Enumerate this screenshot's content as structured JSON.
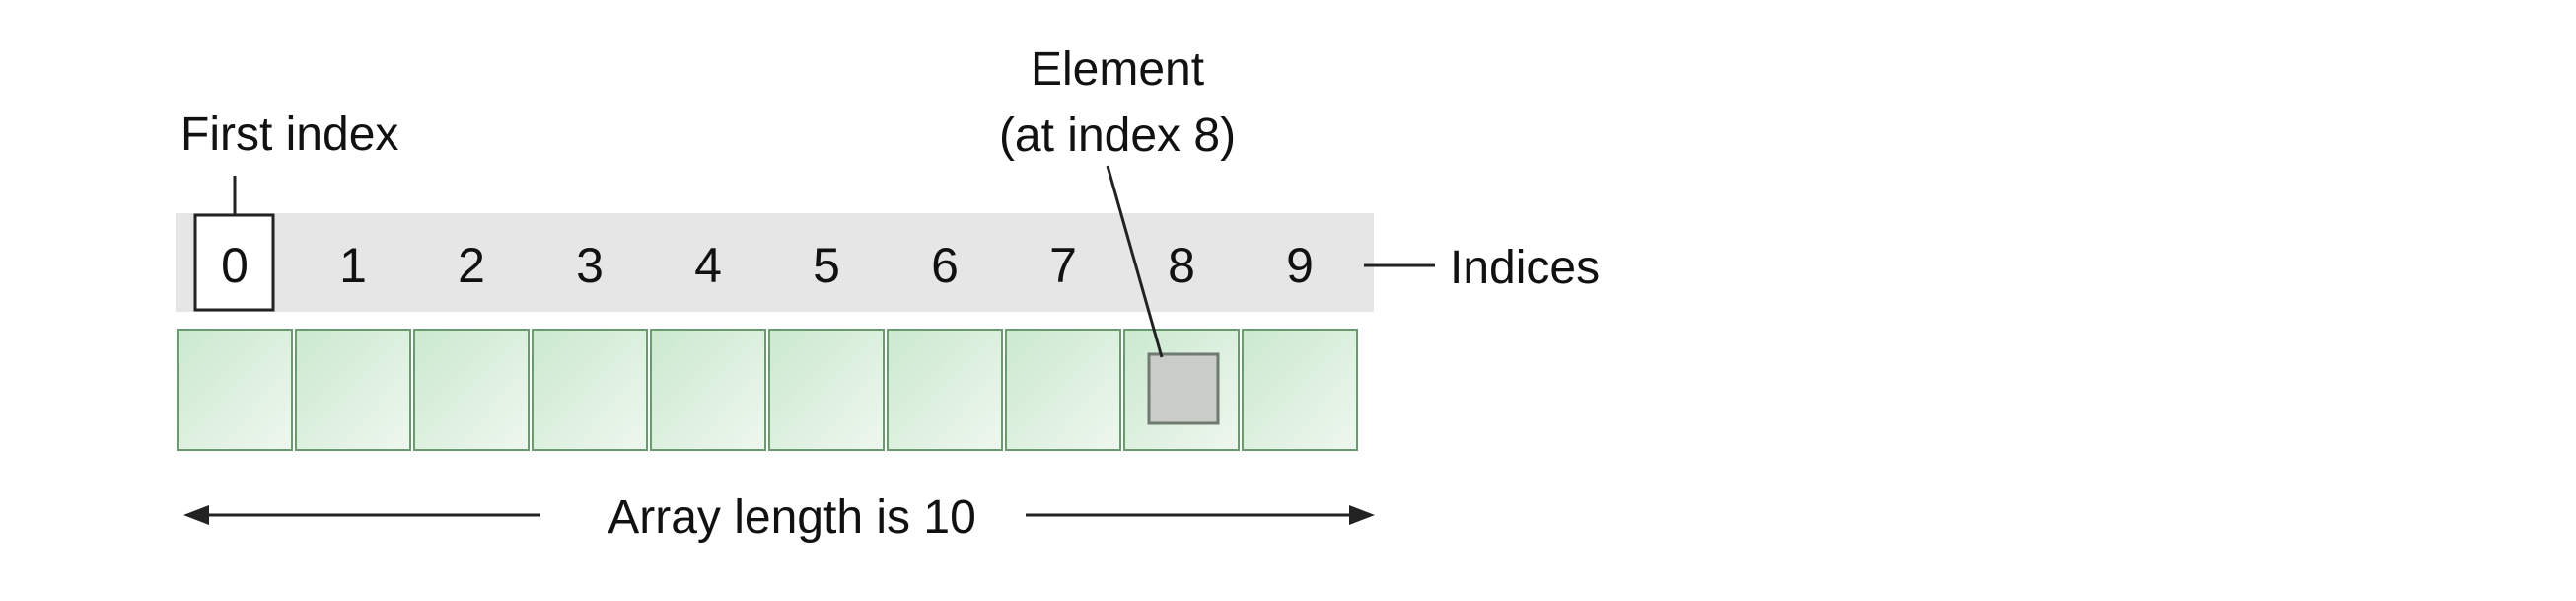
{
  "labels": {
    "first_index": "First index",
    "element_line1": "Element",
    "element_line2": "(at index 8)",
    "indices": "Indices",
    "array_length": "Array length is 10"
  },
  "indices": [
    "0",
    "1",
    "2",
    "3",
    "4",
    "5",
    "6",
    "7",
    "8",
    "9"
  ],
  "highlighted_index": 8,
  "colors": {
    "index_band": "#e6e6e6",
    "cell_fill_light": "#eef7ef",
    "cell_fill_dark": "#cbe9cf",
    "cell_border": "#6a9b70",
    "element_fill": "#c9ccc7",
    "element_border": "#6f7a70",
    "line": "#222222"
  }
}
